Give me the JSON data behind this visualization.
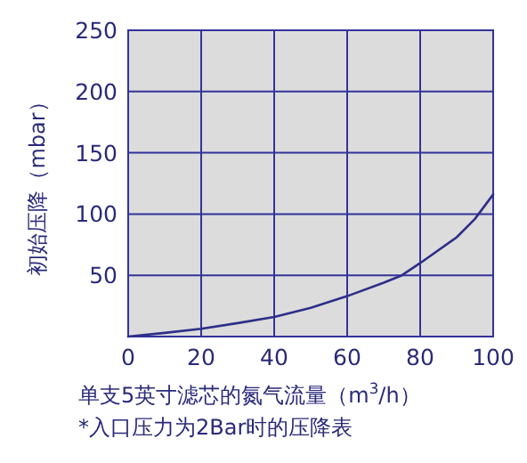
{
  "chart_data": {
    "type": "line",
    "xlabel": "单支5英寸滤芯的氮气流量（m$^{3}$/h）",
    "ylabel": "初始压降（mbar）",
    "annotations": [
      "*入口压力为2Bar时的压降表"
    ],
    "x": [
      0,
      10,
      20,
      30,
      40,
      50,
      60,
      70,
      75,
      80,
      90,
      95,
      100
    ],
    "series": [
      {
        "color": "#2e2e8a",
        "values": [
          0,
          3,
          6.4,
          11,
          16,
          23.5,
          33,
          44,
          50,
          60,
          81,
          96,
          116
        ]
      }
    ],
    "xlim": [
      0,
      100
    ],
    "ylim": [
      0,
      250
    ],
    "xticks": [
      0,
      20,
      40,
      60,
      80,
      100
    ],
    "yticks": [
      {
        "value": 0,
        "label": null
      },
      50,
      100,
      150,
      200,
      250
    ],
    "grid": true,
    "line_style": "solid",
    "marker": "none"
  }
}
